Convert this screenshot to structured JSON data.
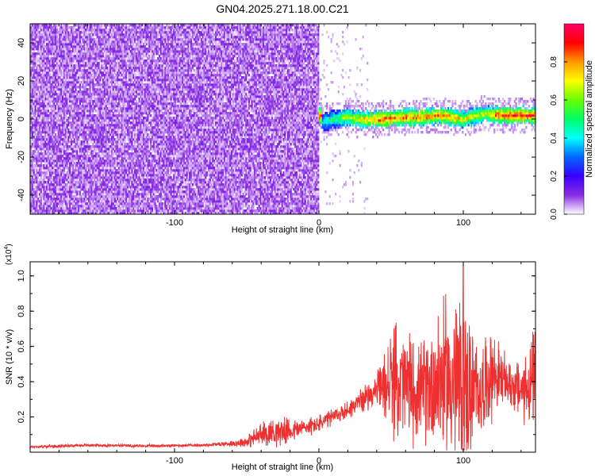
{
  "figure_title": "GN04.2025.271.18.00.C21",
  "chart_data": [
    {
      "type": "heatmap",
      "title": "GN04.2025.271.18.00.C21",
      "xlabel": "Height of straight line (km)",
      "ylabel": "Frequency (Hz)",
      "xlim": [
        -200,
        150
      ],
      "ylim": [
        -50,
        50
      ],
      "xticks": [
        -100,
        0,
        100
      ],
      "yticks": [
        -40,
        -20,
        0,
        20,
        40
      ],
      "colorbar": {
        "label": "Normalized spectral amplitude",
        "range": [
          0,
          1
        ],
        "ticks": [
          "0.0",
          "0.2",
          "0.4",
          "0.6",
          "0.8"
        ],
        "colormap": [
          "#ffffff",
          "#8a2be2",
          "#3a00ff",
          "#0066ff",
          "#00ffff",
          "#00ff66",
          "#66ff00",
          "#ffff00",
          "#ff9900",
          "#ff0000",
          "#ff0066"
        ]
      },
      "regions": [
        {
          "name": "noise",
          "x_range": [
            -200,
            0
          ],
          "freq_range": [
            -50,
            50
          ],
          "amplitude_range": [
            0.02,
            0.12
          ]
        },
        {
          "name": "signal",
          "x_range": [
            0,
            150
          ],
          "center_freq_hz": 1,
          "half_width_hz": 3,
          "peak_amplitude": 1.0
        }
      ],
      "signal_ridge": [
        {
          "x": 2,
          "freq": -2,
          "amp": 0.45
        },
        {
          "x": 10,
          "freq": 0,
          "amp": 0.55
        },
        {
          "x": 20,
          "freq": 1,
          "amp": 0.7
        },
        {
          "x": 30,
          "freq": 0,
          "amp": 0.8
        },
        {
          "x": 45,
          "freq": 0,
          "amp": 0.95
        },
        {
          "x": 55,
          "freq": 1,
          "amp": 0.9
        },
        {
          "x": 70,
          "freq": 1,
          "amp": 0.85
        },
        {
          "x": 85,
          "freq": 2,
          "amp": 0.9
        },
        {
          "x": 100,
          "freq": 0,
          "amp": 0.75
        },
        {
          "x": 115,
          "freq": 3,
          "amp": 0.7
        },
        {
          "x": 125,
          "freq": 2,
          "amp": 0.95
        },
        {
          "x": 140,
          "freq": 2,
          "amp": 0.95
        },
        {
          "x": 150,
          "freq": 2,
          "amp": 0.95
        }
      ]
    },
    {
      "type": "line",
      "xlabel": "Height of straight line (km)",
      "ylabel": "SNR (10 * v/v)",
      "y_scale_label": "(x10",
      "y_scale_exponent": "4",
      "y_scale_suffix": ")",
      "xlim": [
        -200,
        150
      ],
      "ylim": [
        0,
        1.08
      ],
      "xticks": [
        -100,
        0,
        100
      ],
      "yticks": [
        0.2,
        0.4,
        0.6,
        0.8,
        1.0
      ],
      "ytick_labels": [
        "0.2",
        "0.4",
        "0.6",
        "0.8",
        "1.0"
      ],
      "color": "#ee3030",
      "series": [
        {
          "name": "SNR",
          "x": [
            -200,
            -160,
            -120,
            -80,
            -60,
            -50,
            -40,
            -30,
            -20,
            -10,
            0,
            10,
            20,
            30,
            40,
            50,
            60,
            70,
            80,
            90,
            100,
            110,
            120,
            130,
            140,
            150
          ],
          "mean": [
            0.03,
            0.04,
            0.035,
            0.04,
            0.05,
            0.06,
            0.1,
            0.12,
            0.12,
            0.14,
            0.16,
            0.2,
            0.24,
            0.3,
            0.35,
            0.4,
            0.38,
            0.34,
            0.4,
            0.42,
            0.36,
            0.33,
            0.45,
            0.4,
            0.35,
            0.4
          ],
          "spread": [
            0.01,
            0.01,
            0.01,
            0.01,
            0.02,
            0.04,
            0.08,
            0.1,
            0.08,
            0.06,
            0.06,
            0.06,
            0.06,
            0.08,
            0.1,
            0.35,
            0.4,
            0.3,
            0.45,
            0.55,
            0.65,
            0.3,
            0.3,
            0.15,
            0.2,
            0.35
          ]
        }
      ],
      "peak": {
        "x": 100,
        "y": 1.06
      }
    }
  ]
}
